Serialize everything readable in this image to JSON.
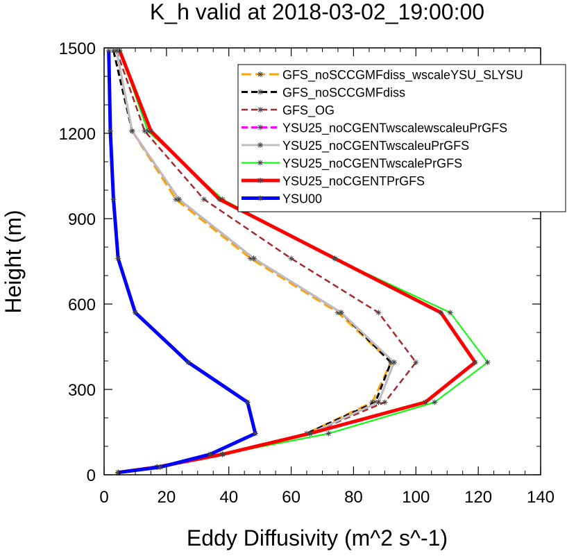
{
  "chart_data": {
    "type": "line",
    "title": "K_h valid at 2018-03-02_19:00:00",
    "xlabel": "Eddy Diffusivity (m^2 s^-1)",
    "ylabel": "Height (m)",
    "xlim": [
      0,
      140
    ],
    "ylim": [
      0,
      1500
    ],
    "xticks": [
      0,
      20,
      40,
      60,
      80,
      100,
      120,
      140
    ],
    "yticks": [
      0,
      300,
      600,
      900,
      1200,
      1500
    ],
    "grid": false,
    "legend_position": "top-right",
    "series": [
      {
        "name": "GFS_noSCCGMFdiss_wscaleYSU_SLYSU",
        "color": "#ffa500",
        "dash": "dash-long",
        "width": 3,
        "points": [
          [
            4.5,
            8
          ],
          [
            17,
            27
          ],
          [
            38,
            72
          ],
          [
            65,
            145
          ],
          [
            86,
            255
          ],
          [
            92,
            395
          ],
          [
            75,
            570
          ],
          [
            47,
            760
          ],
          [
            23,
            968
          ],
          [
            9,
            1208
          ],
          [
            4,
            1490
          ]
        ]
      },
      {
        "name": "GFS_noSCCGMFdiss",
        "color": "#000000",
        "dash": "dash",
        "width": 3,
        "points": [
          [
            4.5,
            8
          ],
          [
            17,
            27
          ],
          [
            38,
            72
          ],
          [
            65,
            145
          ],
          [
            87,
            255
          ],
          [
            92,
            395
          ],
          [
            76,
            570
          ],
          [
            48,
            760
          ],
          [
            24,
            968
          ],
          [
            9,
            1208
          ],
          [
            3,
            1490
          ]
        ]
      },
      {
        "name": "GFS_OG",
        "color": "#a52a2a",
        "dash": "dash",
        "width": 2.5,
        "points": [
          [
            4.5,
            8
          ],
          [
            17,
            27
          ],
          [
            38,
            72
          ],
          [
            66,
            145
          ],
          [
            90,
            255
          ],
          [
            100,
            395
          ],
          [
            88,
            570
          ],
          [
            60,
            760
          ],
          [
            32,
            968
          ],
          [
            13,
            1208
          ],
          [
            4,
            1490
          ]
        ]
      },
      {
        "name": "YSU25_noCGENTwscalewscaleuPrGFS",
        "color": "#ff00ff",
        "dash": "dash",
        "width": 3,
        "points": [
          [
            4.5,
            8
          ],
          [
            17,
            27
          ],
          [
            38,
            72
          ],
          [
            66,
            145
          ],
          [
            88,
            255
          ],
          [
            93,
            395
          ],
          [
            76,
            570
          ],
          [
            48,
            760
          ],
          [
            24,
            968
          ],
          [
            9,
            1208
          ],
          [
            4,
            1490
          ]
        ]
      },
      {
        "name": "YSU25_noCGENTwscaleuPrGFS",
        "color": "#bebebe",
        "dash": "solid",
        "width": 3,
        "points": [
          [
            4.5,
            8
          ],
          [
            17,
            27
          ],
          [
            38,
            72
          ],
          [
            66,
            145
          ],
          [
            88,
            255
          ],
          [
            93,
            395
          ],
          [
            76,
            570
          ],
          [
            48,
            760
          ],
          [
            24,
            968
          ],
          [
            9,
            1208
          ],
          [
            4,
            1490
          ]
        ]
      },
      {
        "name": "YSU25_noCGENTwscalePrGFS",
        "color": "#00ff00",
        "dash": "solid",
        "width": 2,
        "points": [
          [
            4.5,
            8
          ],
          [
            17,
            27
          ],
          [
            38,
            72
          ],
          [
            72,
            145
          ],
          [
            106,
            255
          ],
          [
            123,
            395
          ],
          [
            111,
            570
          ],
          [
            74,
            760
          ],
          [
            38,
            968
          ],
          [
            14,
            1208
          ],
          [
            5,
            1490
          ]
        ]
      },
      {
        "name": "YSU25_noCGENTPrGFS",
        "color": "#ff0000",
        "dash": "solid",
        "width": 5,
        "points": [
          [
            4.5,
            8
          ],
          [
            17,
            27
          ],
          [
            38,
            72
          ],
          [
            66,
            145
          ],
          [
            103,
            255
          ],
          [
            119,
            395
          ],
          [
            108,
            570
          ],
          [
            74,
            760
          ],
          [
            37,
            968
          ],
          [
            15,
            1208
          ],
          [
            5,
            1490
          ]
        ]
      },
      {
        "name": "YSU00",
        "color": "#0000ff",
        "dash": "solid",
        "width": 5,
        "points": [
          [
            4.5,
            8
          ],
          [
            18,
            27
          ],
          [
            34,
            72
          ],
          [
            48.5,
            145
          ],
          [
            46,
            255
          ],
          [
            27,
            395
          ],
          [
            10,
            570
          ],
          [
            4.5,
            760
          ],
          [
            3,
            968
          ],
          [
            2,
            1208
          ],
          [
            1.5,
            1490
          ]
        ]
      }
    ]
  }
}
